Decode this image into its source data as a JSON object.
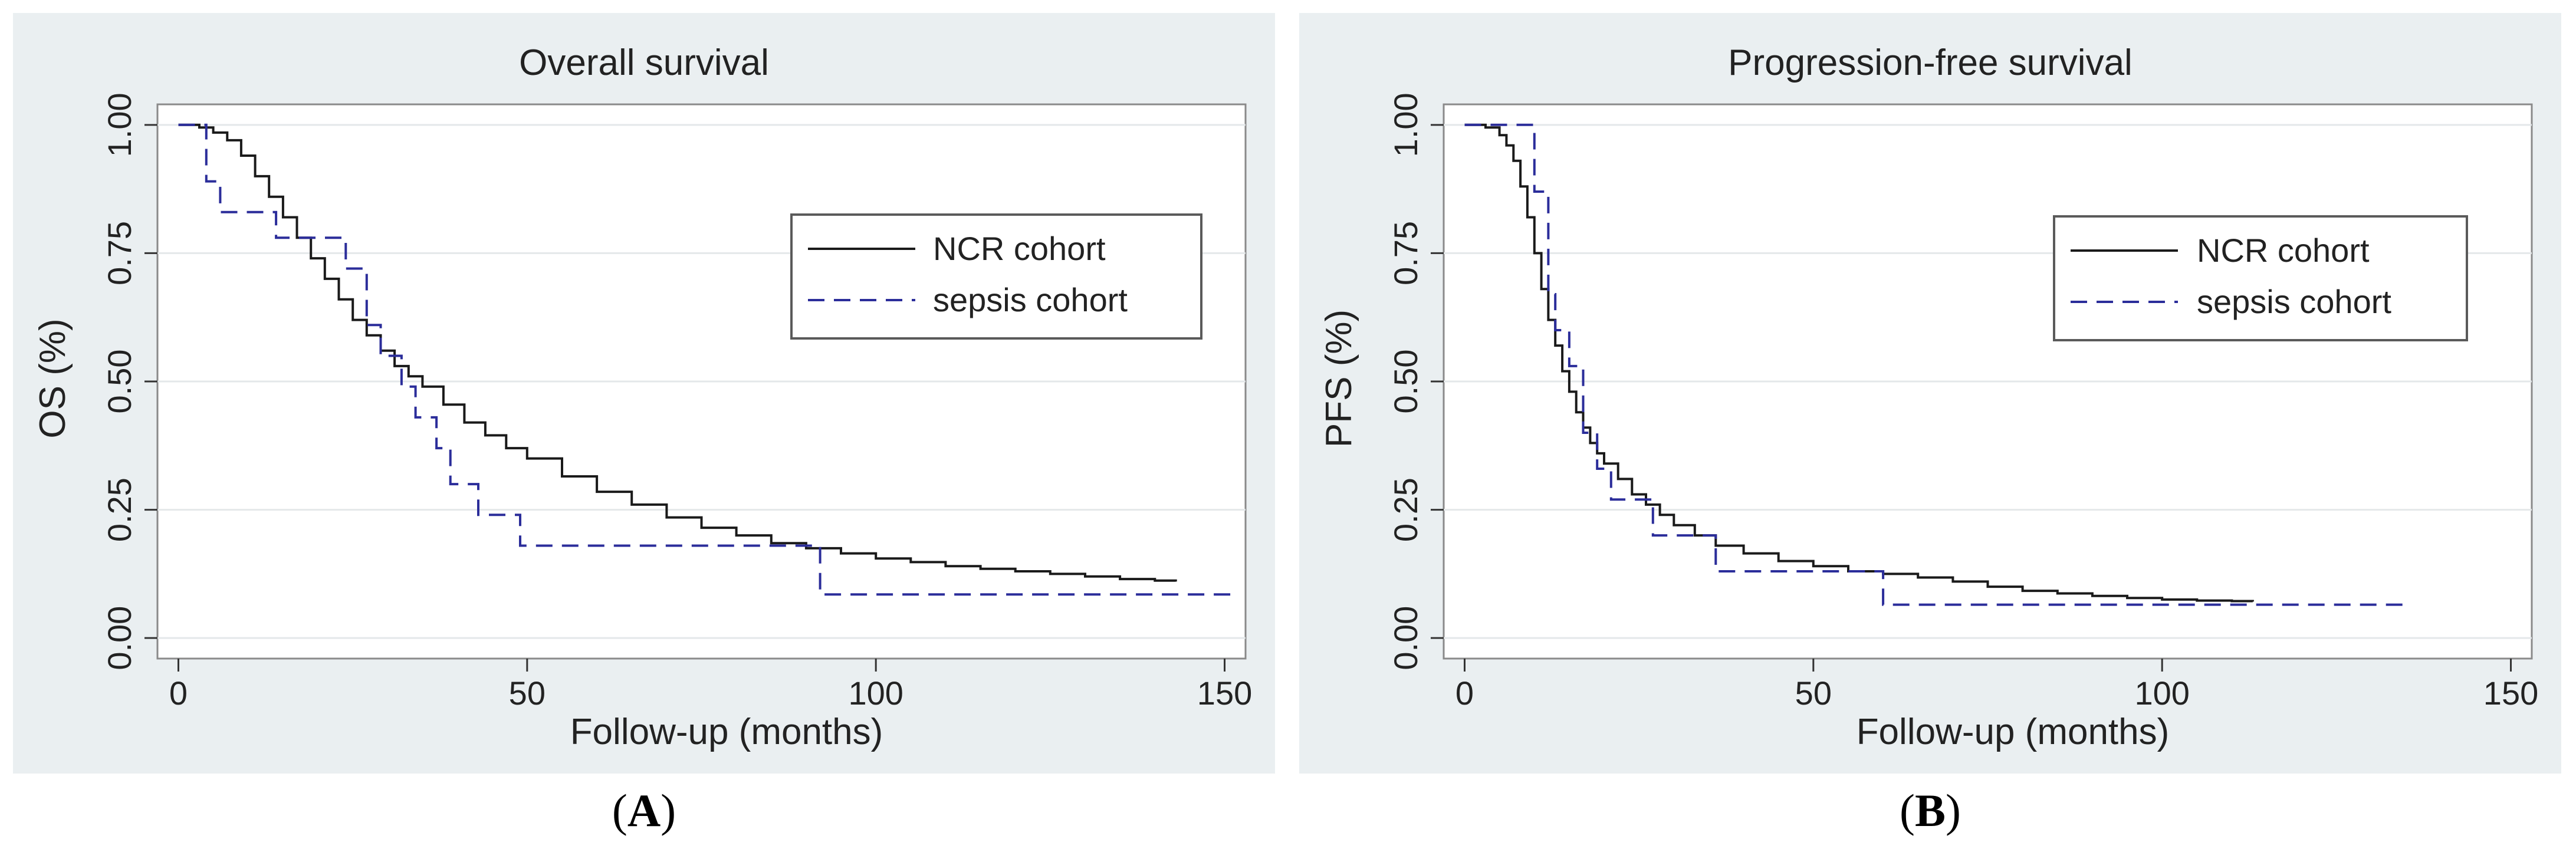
{
  "chart_data": [
    {
      "type": "line",
      "panel_label": "A",
      "title": "Overall survival",
      "xlabel": "Follow-up (months)",
      "ylabel": "OS (%)",
      "xlim": [
        -3,
        153
      ],
      "ylim": [
        -0.04,
        1.04
      ],
      "xticks": [
        0,
        50,
        100,
        150
      ],
      "yticks": [
        0.0,
        0.25,
        0.5,
        0.75,
        1.0
      ],
      "ytick_labels": [
        "0.00",
        "0.25",
        "0.50",
        "0.75",
        "1.00"
      ],
      "grid": true,
      "legend_position": "right",
      "series": [
        {
          "name": "NCR cohort",
          "style": "solid",
          "color": "#1a1a1a",
          "x": [
            0,
            3,
            5,
            7,
            9,
            11,
            13,
            15,
            17,
            19,
            21,
            23,
            25,
            27,
            29,
            31,
            33,
            35,
            38,
            41,
            44,
            47,
            50,
            55,
            60,
            65,
            70,
            75,
            80,
            85,
            90,
            95,
            100,
            105,
            110,
            115,
            120,
            125,
            130,
            135,
            140,
            143
          ],
          "y": [
            1.0,
            0.995,
            0.985,
            0.97,
            0.94,
            0.9,
            0.86,
            0.82,
            0.78,
            0.74,
            0.7,
            0.66,
            0.62,
            0.59,
            0.56,
            0.53,
            0.51,
            0.49,
            0.455,
            0.42,
            0.395,
            0.37,
            0.35,
            0.315,
            0.285,
            0.26,
            0.235,
            0.215,
            0.2,
            0.185,
            0.175,
            0.165,
            0.155,
            0.148,
            0.14,
            0.135,
            0.13,
            0.125,
            0.12,
            0.115,
            0.112,
            0.11
          ]
        },
        {
          "name": "sepsis cohort",
          "style": "dashed",
          "color": "#2b2d9a",
          "x": [
            0,
            4,
            6,
            14,
            24,
            27,
            29,
            32,
            34,
            37,
            39,
            43,
            49,
            92,
            152
          ],
          "y": [
            1.0,
            0.89,
            0.83,
            0.78,
            0.72,
            0.61,
            0.55,
            0.49,
            0.43,
            0.37,
            0.3,
            0.24,
            0.18,
            0.085,
            0.085
          ]
        }
      ]
    },
    {
      "type": "line",
      "panel_label": "B",
      "title": "Progression-free survival",
      "xlabel": "Follow-up (months)",
      "ylabel": "PFS (%)",
      "xlim": [
        -3,
        153
      ],
      "ylim": [
        -0.04,
        1.04
      ],
      "xticks": [
        0,
        50,
        100,
        150
      ],
      "yticks": [
        0.0,
        0.25,
        0.5,
        0.75,
        1.0
      ],
      "ytick_labels": [
        "0.00",
        "0.25",
        "0.50",
        "0.75",
        "1.00"
      ],
      "grid": true,
      "legend_position": "right",
      "series": [
        {
          "name": "NCR cohort",
          "style": "solid",
          "color": "#1a1a1a",
          "x": [
            0,
            3,
            5,
            6,
            7,
            8,
            9,
            10,
            11,
            12,
            13,
            14,
            15,
            16,
            17,
            18,
            19,
            20,
            22,
            24,
            26,
            28,
            30,
            33,
            36,
            40,
            45,
            50,
            55,
            60,
            65,
            70,
            75,
            80,
            85,
            90,
            95,
            100,
            105,
            110,
            113
          ],
          "y": [
            1.0,
            0.995,
            0.98,
            0.96,
            0.93,
            0.88,
            0.82,
            0.75,
            0.68,
            0.62,
            0.57,
            0.52,
            0.48,
            0.44,
            0.41,
            0.38,
            0.36,
            0.34,
            0.31,
            0.28,
            0.26,
            0.24,
            0.22,
            0.2,
            0.18,
            0.165,
            0.15,
            0.14,
            0.13,
            0.125,
            0.118,
            0.11,
            0.1,
            0.092,
            0.087,
            0.082,
            0.078,
            0.075,
            0.073,
            0.072,
            0.071
          ]
        },
        {
          "name": "sepsis cohort",
          "style": "dashed",
          "color": "#2b2d9a",
          "x": [
            0,
            10,
            12,
            13,
            15,
            17,
            19,
            21,
            27,
            36,
            60,
            135
          ],
          "y": [
            1.0,
            0.87,
            0.67,
            0.6,
            0.53,
            0.4,
            0.33,
            0.27,
            0.2,
            0.13,
            0.065,
            0.065
          ]
        }
      ]
    }
  ]
}
